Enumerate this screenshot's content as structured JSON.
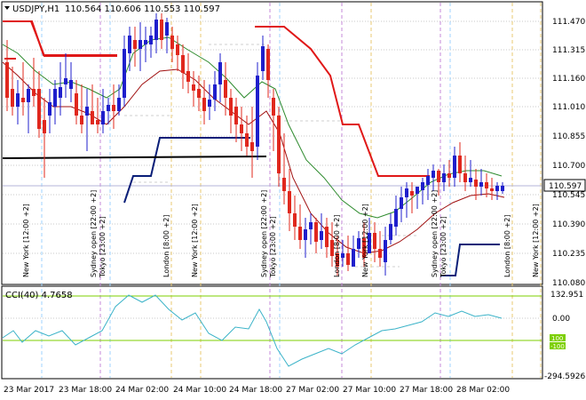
{
  "chart": {
    "symbol_label": "USDJPY,H1",
    "ohlc_label": "110.564 110.606 110.553 110.597",
    "current_price_label": "110.597",
    "price_ticks": [
      "111.470",
      "111.315",
      "111.160",
      "111.010",
      "110.855",
      "110.700",
      "110.545",
      "110.390",
      "110.235",
      "110.080"
    ]
  },
  "indicator": {
    "label": "CCI(40) 4.7658",
    "ticks": [
      "132.951",
      "0.00",
      "-294.5926"
    ],
    "level_high": "100",
    "level_low": "-100"
  },
  "time_axis": [
    "23 Mar 2017",
    "23 Mar 18:00",
    "24 Mar 02:00",
    "24 Mar 10:00",
    "24 Mar 18:00",
    "27 Mar 02:00",
    "27 Mar 10:00",
    "27 Mar 18:00",
    "28 Mar 02:00"
  ],
  "session_labels": [
    {
      "text": "New York  [12:00 +2]"
    },
    {
      "text": "Sydney open  [22:00 +2]"
    },
    {
      "text": "Tokyo  [23:00 +2]"
    },
    {
      "text": "London  [8:00 +2]"
    },
    {
      "text": "New York  [12:00 +2]"
    },
    {
      "text": "Sydney open  [22:00 +2]"
    },
    {
      "text": "Tokyo  [23:00 +2]"
    },
    {
      "text": "London  [8:00 +2]"
    },
    {
      "text": "New York  [12:00 +2]"
    },
    {
      "text": "Sydney open  [22:00 +2]"
    },
    {
      "text": "Tokyo  [23:00 +2]"
    },
    {
      "text": "London  [8:00 +2]"
    },
    {
      "text": "New York  [12:00 +2]"
    }
  ],
  "colors": {
    "bull": "#1f1fcc",
    "bear": "#e0281e",
    "slow_ma": "#2e8b2e",
    "fast_ma": "#a01010",
    "trail_red": "#e01818",
    "trail_navy": "#0a1e78",
    "cci": "#3bb3c8",
    "level": "#7ccf00"
  }
}
